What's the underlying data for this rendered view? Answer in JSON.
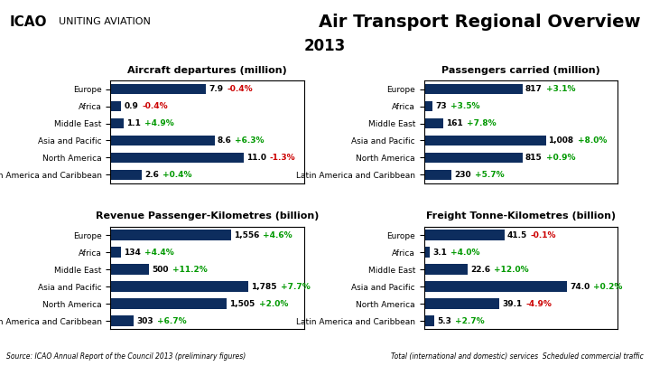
{
  "title": "Air Transport Regional Overview",
  "subtitle": "2013",
  "annotations": [
    "ICAO",
    "UNITING AVIATION",
    "Source: ICAO Annual Report of the Council 2013 (preliminary figures)",
    "Total (international and domestic) services  Scheduled commercial traffic"
  ],
  "chart_data": [
    {
      "type": "bar",
      "orientation": "horizontal",
      "title": "Aircraft departures (million)",
      "categories": [
        "Europe",
        "Africa",
        "Middle East",
        "Asia and Pacific",
        "North America",
        "Latin America and Caribbean"
      ],
      "values": [
        7.9,
        0.9,
        1.1,
        8.6,
        11.0,
        2.6
      ],
      "value_labels": [
        "7.9",
        "0.9",
        "1.1",
        "8.6",
        "11.0",
        "2.6"
      ],
      "changes": [
        "-0.4%",
        "-0.4%",
        "+4.9%",
        "+6.3%",
        "-1.3%",
        "+0.4%"
      ],
      "change_colors": [
        "#cc0000",
        "#cc0000",
        "#009900",
        "#009900",
        "#cc0000",
        "#009900"
      ],
      "color": "#0d2d5e",
      "data_labels": true,
      "xlim": [
        0,
        16
      ],
      "tick_labels": "y"
    },
    {
      "type": "bar",
      "orientation": "horizontal",
      "title": "Passengers carried (million)",
      "categories": [
        "Europe",
        "Africa",
        "Middle East",
        "Asia and Pacific",
        "North America",
        "Latin America and Caribbean"
      ],
      "values": [
        817,
        73,
        161,
        1008,
        815,
        230
      ],
      "value_labels": [
        "817",
        "73",
        "161",
        "1,008",
        "815",
        "230"
      ],
      "changes": [
        "+3.1%",
        "+3.5%",
        "+7.8%",
        "+8.0%",
        "+0.9%",
        "+5.7%"
      ],
      "change_colors": [
        "#009900",
        "#009900",
        "#009900",
        "#009900",
        "#009900",
        "#009900"
      ],
      "color": "#0d2d5e",
      "data_labels": true,
      "xlim": [
        0,
        1600
      ],
      "tick_labels": "y"
    },
    {
      "type": "bar",
      "orientation": "horizontal",
      "title": "Revenue Passenger-Kilometres (billion)",
      "categories": [
        "Europe",
        "Africa",
        "Middle East",
        "Asia and Pacific",
        "North America",
        "Latin America and Caribbean"
      ],
      "values": [
        1556,
        134,
        500,
        1785,
        1505,
        303
      ],
      "value_labels": [
        "1,556",
        "134",
        "500",
        "1,785",
        "1,505",
        "303"
      ],
      "changes": [
        "+4.6%",
        "+4.4%",
        "+11.2%",
        "+7.7%",
        "+2.0%",
        "+6.7%"
      ],
      "change_colors": [
        "#009900",
        "#009900",
        "#009900",
        "#009900",
        "#009900",
        "#009900"
      ],
      "color": "#0d2d5e",
      "data_labels": true,
      "xlim": [
        0,
        2500
      ],
      "tick_labels": "y"
    },
    {
      "type": "bar",
      "orientation": "horizontal",
      "title": "Freight Tonne-Kilometres (billion)",
      "categories": [
        "Europe",
        "Africa",
        "Middle East",
        "Asia and Pacific",
        "North America",
        "Latin America and Caribbean"
      ],
      "values": [
        41.5,
        3.1,
        22.6,
        74.0,
        39.1,
        5.3
      ],
      "value_labels": [
        "41.5",
        "3.1",
        "22.6",
        "74.0",
        "39.1",
        "5.3"
      ],
      "changes": [
        "-0.1%",
        "+4.0%",
        "+12.0%",
        "+0.2%",
        "-4.9%",
        "+2.7%"
      ],
      "change_colors": [
        "#cc0000",
        "#009900",
        "#009900",
        "#009900",
        "#cc0000",
        "#009900"
      ],
      "color": "#0d2d5e",
      "data_labels": true,
      "xlim": [
        0,
        100
      ],
      "tick_labels": "y"
    }
  ]
}
